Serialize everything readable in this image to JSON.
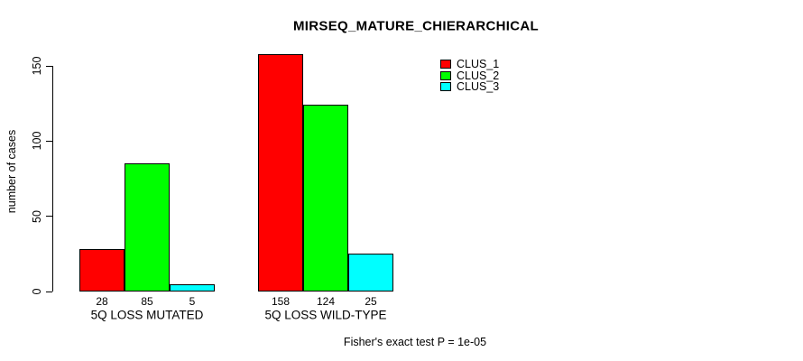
{
  "title": "MIRSEQ_MATURE_CHIERARCHICAL",
  "chart_data": {
    "type": "bar",
    "title": "MIRSEQ_MATURE_CHIERARCHICAL",
    "xlabel": "",
    "ylabel": "number of cases",
    "ylim": [
      0,
      150
    ],
    "yticks": [
      0,
      50,
      100,
      150
    ],
    "grid": false,
    "legend_position": "top-right-outside-plot",
    "categories": [
      "5Q LOSS MUTATED",
      "5Q LOSS WILD-TYPE"
    ],
    "series": [
      {
        "name": "CLUS_1",
        "color": "#FF0000",
        "values": [
          28,
          158
        ]
      },
      {
        "name": "CLUS_2",
        "color": "#00FF00",
        "values": [
          85,
          124
        ]
      },
      {
        "name": "CLUS_3",
        "color": "#00FFFF",
        "values": [
          5,
          25
        ]
      }
    ],
    "bar_value_labels": [
      [
        "28",
        "85",
        "5"
      ],
      [
        "158",
        "124",
        "25"
      ]
    ],
    "annotation": "Fisher's exact test P = 1e-05"
  },
  "colors": {
    "axis": "#000000",
    "background": "#FFFFFF",
    "clus_1": "#FF0000",
    "clus_2": "#00FF00",
    "clus_3": "#00FFFF"
  }
}
